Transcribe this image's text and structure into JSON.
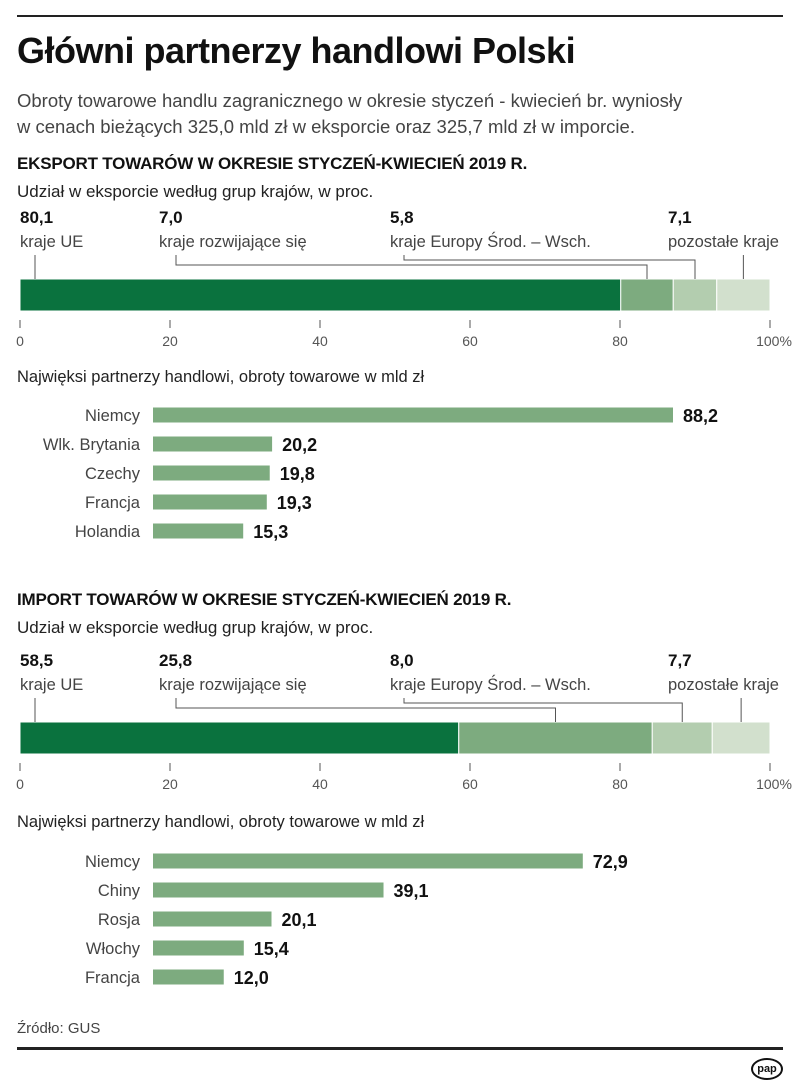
{
  "header": {
    "title": "Główni partnerzy handlowi Polski",
    "lead_line1": "Obroty towarowe handlu zagranicznego w okresie styczeń - kwiecień br. wyniosły",
    "lead_line2": "w cenach bieżących 325,0 mld zł w eksporcie oraz 325,7 mld zł w imporcie."
  },
  "colors": {
    "dark_green": "#0a723e",
    "mid_green": "#7dab7f",
    "light_green": "#b3cdaf",
    "pale_green": "#d2e0cd",
    "partner_bar": "#7dab7f"
  },
  "export": {
    "section_title": "EKSPORT TOWARÓW W OKRESIE STYCZEŃ-KWIECIEŃ 2019 R.",
    "share_subtitle": "Udział w eksporcie według grup krajów, w proc.",
    "partners_subtitle": "Najwięksi partnerzy handlowi, obroty towarowe w mld zł"
  },
  "import": {
    "section_title": "IMPORT TOWARÓW W OKRESIE STYCZEŃ-KWIECIEŃ 2019 R.",
    "share_subtitle": "Udział w eksporcie według grup krajów, w proc.",
    "partners_subtitle": "Najwięksi partnerzy handlowi, obroty towarowe w mld zł"
  },
  "chart_data": [
    {
      "type": "bar",
      "stacked": true,
      "orientation": "horizontal",
      "title": "EKSPORT TOWARÓW W OKRESIE STYCZEŃ-KWIECIEŃ 2019 R.",
      "subtitle": "Udział w eksporcie według grup krajów, w proc.",
      "series": [
        {
          "name": "kraje UE",
          "value": 80.1,
          "label": "80,1"
        },
        {
          "name": "kraje rozwijające się",
          "value": 7.0,
          "label": "7,0"
        },
        {
          "name": "kraje Europy Środ. – Wsch.",
          "value": 5.8,
          "label": "5,8"
        },
        {
          "name": "pozostałe kraje",
          "value": 7.1,
          "label": "7,1"
        }
      ],
      "xlim": [
        0,
        100
      ],
      "xticks": [
        "0",
        "20",
        "40",
        "60",
        "80",
        "100%"
      ]
    },
    {
      "type": "bar",
      "orientation": "horizontal",
      "title": "Najwięksi partnerzy handlowi, obroty towarowe w mld zł",
      "categories": [
        "Niemcy",
        "Wlk. Brytania",
        "Czechy",
        "Francja",
        "Holandia"
      ],
      "values": [
        88.2,
        20.2,
        19.8,
        19.3,
        15.3
      ],
      "labels": [
        "88,2",
        "20,2",
        "19,8",
        "19,3",
        "15,3"
      ]
    },
    {
      "type": "bar",
      "stacked": true,
      "orientation": "horizontal",
      "title": "IMPORT TOWARÓW W OKRESIE STYCZEŃ-KWIECIEŃ 2019 R.",
      "subtitle": "Udział w eksporcie według grup krajów, w proc.",
      "series": [
        {
          "name": "kraje UE",
          "value": 58.5,
          "label": "58,5"
        },
        {
          "name": "kraje rozwijające się",
          "value": 25.8,
          "label": "25,8"
        },
        {
          "name": "kraje Europy Środ. – Wsch.",
          "value": 8.0,
          "label": "8,0"
        },
        {
          "name": "pozostałe kraje",
          "value": 7.7,
          "label": "7,7"
        }
      ],
      "xlim": [
        0,
        100
      ],
      "xticks": [
        "0",
        "20",
        "40",
        "60",
        "80",
        "100%"
      ]
    },
    {
      "type": "bar",
      "orientation": "horizontal",
      "title": "Najwięksi partnerzy handlowi, obroty towarowe w mld zł",
      "categories": [
        "Niemcy",
        "Chiny",
        "Rosja",
        "Włochy",
        "Francja"
      ],
      "values": [
        72.9,
        39.1,
        20.1,
        15.4,
        12.0
      ],
      "labels": [
        "72,9",
        "39,1",
        "20,1",
        "15,4",
        "12,0"
      ]
    }
  ],
  "footer": {
    "source": "Źródło: GUS",
    "logo_text": "pap"
  }
}
